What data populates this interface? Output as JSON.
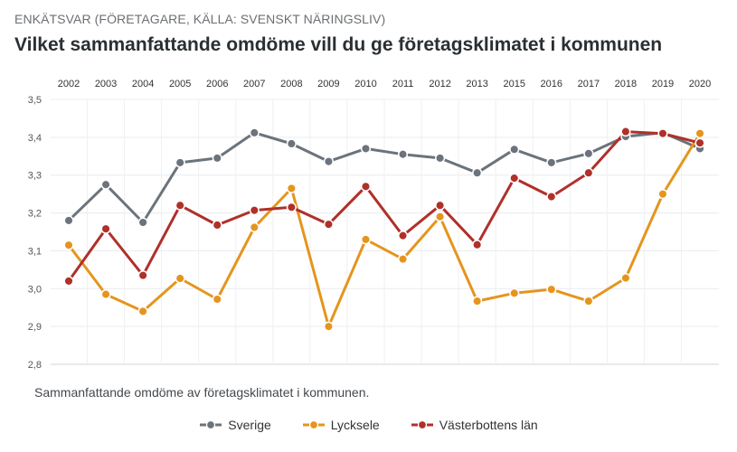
{
  "header": {
    "supertitle": "ENKÄTSVAR (FÖRETAGARE, KÄLLA: SVENSKT NÄRINGSLIV)",
    "title": "Vilket sammanfattande omdöme vill du ge företagsklimatet i kommunen"
  },
  "caption": "Sammanfattande omdöme av företagsklimatet i kommunen.",
  "chart_data": {
    "type": "line",
    "categories": [
      "2002",
      "2003",
      "2004",
      "2005",
      "2006",
      "2007",
      "2008",
      "2009",
      "2010",
      "2011",
      "2012",
      "2013",
      "2015",
      "2016",
      "2017",
      "2018",
      "2019",
      "2020"
    ],
    "ylim": [
      2.8,
      3.5
    ],
    "yticks": [
      "2,8",
      "2,9",
      "3,0",
      "3,1",
      "3,2",
      "3,3",
      "3,4",
      "3,5"
    ],
    "grid": true,
    "legend_position": "bottom",
    "series": [
      {
        "name": "Sverige",
        "color": "#6b737c",
        "values": [
          3.18,
          3.275,
          3.175,
          3.333,
          3.345,
          3.412,
          3.383,
          3.336,
          3.37,
          3.355,
          3.345,
          3.306,
          3.368,
          3.333,
          3.357,
          3.402,
          3.412,
          3.37
        ]
      },
      {
        "name": "Lycksele",
        "color": "#e5951d",
        "values": [
          3.115,
          2.985,
          2.94,
          3.027,
          2.972,
          3.162,
          3.265,
          2.9,
          3.13,
          3.078,
          3.19,
          2.967,
          2.988,
          2.998,
          2.967,
          3.028,
          3.25,
          3.41
        ]
      },
      {
        "name": "Västerbottens län",
        "color": "#b0302a",
        "values": [
          3.02,
          3.158,
          3.035,
          3.22,
          3.168,
          3.207,
          3.215,
          3.17,
          3.27,
          3.14,
          3.22,
          3.116,
          3.292,
          3.243,
          3.306,
          3.415,
          3.41,
          3.385
        ]
      }
    ]
  }
}
